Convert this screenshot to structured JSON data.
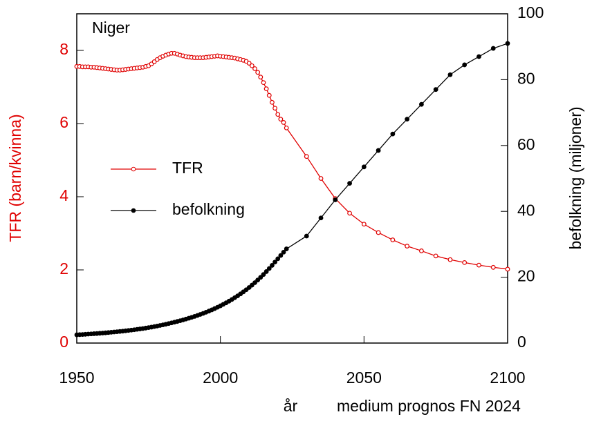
{
  "chart_data": {
    "type": "line",
    "title": "Niger",
    "x_label": "år",
    "annotation": "medium  prognos FN 2024",
    "y_label": "TFR (barn/kvinna)",
    "y2_label": "befolkning (miljoner)",
    "xlim": [
      1950,
      2100
    ],
    "xticks": [
      1950,
      2000,
      2050,
      2100
    ],
    "ylim": [
      0,
      9
    ],
    "yticks": [
      0,
      2,
      4,
      6,
      8
    ],
    "y2lim": [
      0,
      100
    ],
    "y2ticks": [
      0,
      20,
      40,
      60,
      80,
      100
    ],
    "legend": "center-left",
    "x": [
      1950,
      1951,
      1952,
      1953,
      1954,
      1955,
      1956,
      1957,
      1958,
      1959,
      1960,
      1961,
      1962,
      1963,
      1964,
      1965,
      1966,
      1967,
      1968,
      1969,
      1970,
      1971,
      1972,
      1973,
      1974,
      1975,
      1976,
      1977,
      1978,
      1979,
      1980,
      1981,
      1982,
      1983,
      1984,
      1985,
      1986,
      1987,
      1988,
      1989,
      1990,
      1991,
      1992,
      1993,
      1994,
      1995,
      1996,
      1997,
      1998,
      1999,
      2000,
      2001,
      2002,
      2003,
      2004,
      2005,
      2006,
      2007,
      2008,
      2009,
      2010,
      2011,
      2012,
      2013,
      2014,
      2015,
      2016,
      2017,
      2018,
      2019,
      2020,
      2021,
      2022,
      2023,
      2030,
      2035,
      2040,
      2045,
      2050,
      2055,
      2060,
      2065,
      2070,
      2075,
      2080,
      2085,
      2090,
      2095,
      2100
    ],
    "series": [
      {
        "name": "TFR",
        "color": "#e00000",
        "marker": "open",
        "values": [
          7.56,
          7.56,
          7.55,
          7.55,
          7.55,
          7.54,
          7.54,
          7.53,
          7.52,
          7.51,
          7.5,
          7.49,
          7.48,
          7.47,
          7.46,
          7.46,
          7.47,
          7.48,
          7.49,
          7.5,
          7.51,
          7.52,
          7.53,
          7.54,
          7.56,
          7.58,
          7.63,
          7.69,
          7.75,
          7.8,
          7.84,
          7.87,
          7.9,
          7.92,
          7.92,
          7.9,
          7.87,
          7.85,
          7.83,
          7.82,
          7.81,
          7.8,
          7.8,
          7.8,
          7.8,
          7.81,
          7.82,
          7.83,
          7.84,
          7.85,
          7.84,
          7.83,
          7.82,
          7.81,
          7.8,
          7.79,
          7.77,
          7.75,
          7.73,
          7.7,
          7.65,
          7.58,
          7.5,
          7.4,
          7.27,
          7.12,
          6.95,
          6.77,
          6.58,
          6.42,
          6.25,
          6.12,
          6.03,
          5.88,
          5.1,
          4.5,
          3.95,
          3.55,
          3.25,
          3.02,
          2.82,
          2.65,
          2.52,
          2.38,
          2.28,
          2.2,
          2.13,
          2.07,
          2.02
        ]
      },
      {
        "name": "befolkning",
        "color": "#000000",
        "marker": "filled",
        "axis": "y2",
        "values": [
          2.5,
          2.55,
          2.6,
          2.66,
          2.72,
          2.78,
          2.84,
          2.9,
          2.97,
          3.04,
          3.11,
          3.19,
          3.27,
          3.35,
          3.44,
          3.53,
          3.62,
          3.72,
          3.82,
          3.93,
          4.04,
          4.16,
          4.28,
          4.41,
          4.55,
          4.69,
          4.84,
          5.0,
          5.17,
          5.35,
          5.53,
          5.72,
          5.92,
          6.13,
          6.34,
          6.56,
          6.79,
          7.03,
          7.28,
          7.54,
          7.81,
          8.09,
          8.39,
          8.7,
          9.02,
          9.36,
          9.71,
          10.08,
          10.47,
          10.88,
          11.31,
          11.76,
          12.23,
          12.72,
          13.24,
          13.78,
          14.34,
          14.93,
          15.55,
          16.2,
          16.88,
          17.6,
          18.35,
          19.14,
          19.96,
          20.82,
          21.71,
          22.64,
          23.6,
          24.6,
          25.6,
          26.6,
          27.6,
          28.6,
          32.5,
          38,
          43.5,
          48.5,
          53.5,
          58.5,
          63.5,
          68,
          72.5,
          77,
          81.5,
          84.5,
          87,
          89.5,
          91
        ]
      }
    ]
  }
}
